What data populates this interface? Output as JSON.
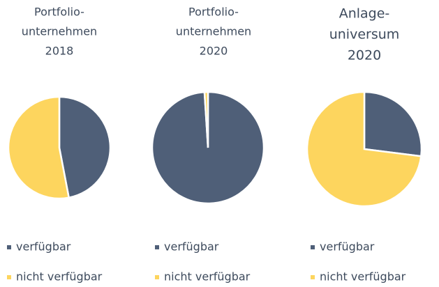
{
  "chart_data": [
    {
      "type": "pie",
      "title": [
        "Portfolio-",
        "unternehmen",
        "2018"
      ],
      "categories": [
        "verfügbar",
        "nicht verfügbar"
      ],
      "values": [
        47,
        53
      ],
      "colors": [
        "#4f5f78",
        "#fdd55e"
      ]
    },
    {
      "type": "pie",
      "title": [
        "Portfolio-",
        "unternehmen",
        "2020"
      ],
      "categories": [
        "verfügbar",
        "nicht verfügbar"
      ],
      "values": [
        99,
        1
      ],
      "colors": [
        "#4f5f78",
        "#fdd55e"
      ]
    },
    {
      "type": "pie",
      "title": [
        "Anlage-",
        "universum",
        "2020"
      ],
      "categories": [
        "verfügbar",
        "nicht verfügbar"
      ],
      "values": [
        27,
        73
      ],
      "colors": [
        "#4f5f78",
        "#fdd55e"
      ]
    }
  ]
}
